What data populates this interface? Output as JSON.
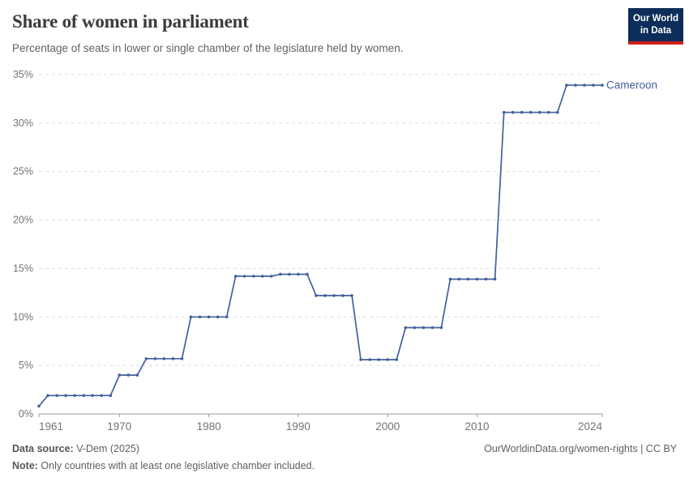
{
  "header": {
    "title": "Share of women in parliament",
    "subtitle": "Percentage of seats in lower or single chamber of the legislature held by women.",
    "logo": {
      "line1": "Our World",
      "line2": "in Data",
      "bg_color": "#0d2d5a",
      "accent_color": "#cc2017"
    }
  },
  "colors": {
    "line": "#42619e",
    "grid": "#dcdcdc",
    "axis": "#9a9a9a",
    "tick_text": "#737373"
  },
  "chart_data": {
    "type": "line",
    "title": "Share of women in parliament",
    "subtitle": "Percentage of seats in lower or single chamber of the legislature held by women.",
    "entity": "Cameroon",
    "xlabel": "",
    "ylabel": "",
    "ylim": [
      0,
      35
    ],
    "yticks": [
      0,
      5,
      10,
      15,
      20,
      25,
      30,
      35
    ],
    "ytick_suffix": "%",
    "xticks": [
      1961,
      1970,
      1980,
      1990,
      2000,
      2010,
      2024
    ],
    "grid": "horizontal-dashed",
    "legend_position": "end-of-line",
    "x": [
      1961,
      1962,
      1963,
      1964,
      1965,
      1966,
      1967,
      1968,
      1969,
      1970,
      1971,
      1972,
      1973,
      1974,
      1975,
      1976,
      1977,
      1978,
      1979,
      1980,
      1981,
      1982,
      1983,
      1984,
      1985,
      1986,
      1987,
      1988,
      1989,
      1990,
      1991,
      1992,
      1993,
      1994,
      1995,
      1996,
      1997,
      1998,
      1999,
      2000,
      2001,
      2002,
      2003,
      2004,
      2005,
      2006,
      2007,
      2008,
      2009,
      2010,
      2011,
      2012,
      2013,
      2014,
      2015,
      2016,
      2017,
      2018,
      2019,
      2020,
      2021,
      2022,
      2023,
      2024
    ],
    "series": [
      {
        "name": "Cameroon",
        "color": "#42619e",
        "values": [
          0.8,
          1.9,
          1.9,
          1.9,
          1.9,
          1.9,
          1.9,
          1.9,
          1.9,
          4.0,
          4.0,
          4.0,
          5.7,
          5.7,
          5.7,
          5.7,
          5.7,
          10.0,
          10.0,
          10.0,
          10.0,
          10.0,
          14.2,
          14.2,
          14.2,
          14.2,
          14.2,
          14.4,
          14.4,
          14.4,
          14.4,
          12.2,
          12.2,
          12.2,
          12.2,
          12.2,
          5.6,
          5.6,
          5.6,
          5.6,
          5.6,
          8.9,
          8.9,
          8.9,
          8.9,
          8.9,
          13.9,
          13.9,
          13.9,
          13.9,
          13.9,
          13.9,
          31.1,
          31.1,
          31.1,
          31.1,
          31.1,
          31.1,
          31.1,
          33.9,
          33.9,
          33.9,
          33.9,
          33.9
        ]
      }
    ]
  },
  "footer": {
    "source_label": "Data source:",
    "source_value": " V-Dem (2025)",
    "link": "OurWorldinData.org/women-rights | CC BY",
    "note_label": "Note:",
    "note_value": " Only countries with at least one legislative chamber included."
  }
}
